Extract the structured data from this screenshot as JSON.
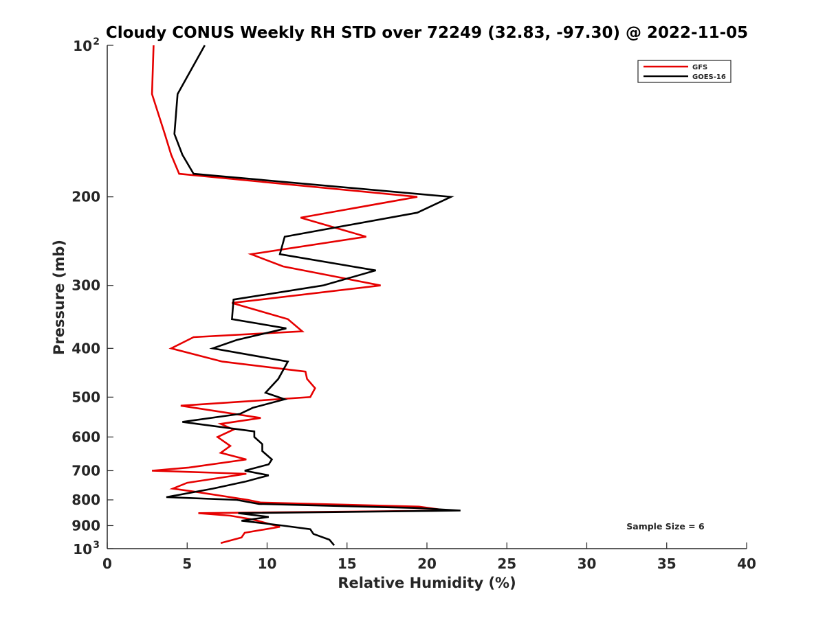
{
  "chart_data": {
    "type": "line",
    "title": "Cloudy CONUS Weekly RH STD over 72249 (32.83, -97.30) @ 2022-11-05",
    "xlabel": "Relative Humidity (%)",
    "ylabel": "Pressure (mb)",
    "xlim": [
      0,
      40
    ],
    "ylim": [
      100,
      1000
    ],
    "y_scale": "log",
    "y_reversed": true,
    "grid": false,
    "legend_position": "top-right",
    "x_ticks": [
      "0",
      "5",
      "10",
      "15",
      "20",
      "25",
      "30",
      "35",
      "40"
    ],
    "y_ticks": [
      {
        "value": 100,
        "base": "10",
        "exp": "2"
      },
      {
        "value": 200,
        "label": "200"
      },
      {
        "value": 300,
        "label": "300"
      },
      {
        "value": 400,
        "label": "400"
      },
      {
        "value": 500,
        "label": "500"
      },
      {
        "value": 600,
        "label": "600"
      },
      {
        "value": 700,
        "label": "700"
      },
      {
        "value": 800,
        "label": "800"
      },
      {
        "value": 900,
        "label": "900"
      },
      {
        "value": 1000,
        "base": "10",
        "exp": "3"
      }
    ],
    "annotation": "Sample Size = 6",
    "series": [
      {
        "name": "GFS",
        "color": "#e60000",
        "points": [
          [
            2.9,
            100
          ],
          [
            2.8,
            125
          ],
          [
            3.6,
            150
          ],
          [
            4.0,
            165
          ],
          [
            4.5,
            180
          ],
          [
            19.4,
            200
          ],
          [
            12.1,
            220
          ],
          [
            16.2,
            240
          ],
          [
            9.0,
            260
          ],
          [
            11.0,
            275
          ],
          [
            17.1,
            300
          ],
          [
            7.8,
            325
          ],
          [
            11.3,
            350
          ],
          [
            12.2,
            370
          ],
          [
            5.4,
            380
          ],
          [
            4.0,
            400
          ],
          [
            7.2,
            425
          ],
          [
            12.4,
            445
          ],
          [
            12.5,
            460
          ],
          [
            13.0,
            480
          ],
          [
            12.7,
            500
          ],
          [
            4.6,
            520
          ],
          [
            9.6,
            550
          ],
          [
            7.1,
            565
          ],
          [
            7.9,
            580
          ],
          [
            6.9,
            600
          ],
          [
            7.7,
            625
          ],
          [
            7.1,
            645
          ],
          [
            8.7,
            665
          ],
          [
            5.1,
            690
          ],
          [
            2.8,
            700
          ],
          [
            8.7,
            710
          ],
          [
            5.0,
            740
          ],
          [
            4.1,
            760
          ],
          [
            5.4,
            770
          ],
          [
            8.8,
            800
          ],
          [
            9.6,
            810
          ],
          [
            19.5,
            825
          ],
          [
            21.3,
            840
          ],
          [
            5.7,
            850
          ],
          [
            7.7,
            860
          ],
          [
            9.1,
            875
          ],
          [
            10.8,
            905
          ],
          [
            8.6,
            930
          ],
          [
            8.4,
            950
          ],
          [
            7.1,
            975
          ]
        ]
      },
      {
        "name": "GOES-16",
        "color": "#000000",
        "points": [
          [
            6.1,
            100
          ],
          [
            4.4,
            125
          ],
          [
            4.2,
            150
          ],
          [
            4.7,
            165
          ],
          [
            5.4,
            180
          ],
          [
            21.5,
            200
          ],
          [
            19.4,
            215
          ],
          [
            11.1,
            240
          ],
          [
            10.8,
            260
          ],
          [
            16.8,
            280
          ],
          [
            13.5,
            300
          ],
          [
            7.9,
            320
          ],
          [
            7.8,
            350
          ],
          [
            11.2,
            365
          ],
          [
            8.1,
            385
          ],
          [
            6.6,
            400
          ],
          [
            11.3,
            425
          ],
          [
            10.7,
            460
          ],
          [
            9.9,
            490
          ],
          [
            11.1,
            505
          ],
          [
            9.1,
            525
          ],
          [
            8.3,
            540
          ],
          [
            4.7,
            560
          ],
          [
            9.2,
            585
          ],
          [
            9.2,
            600
          ],
          [
            9.7,
            620
          ],
          [
            9.7,
            640
          ],
          [
            10.3,
            665
          ],
          [
            10.1,
            680
          ],
          [
            8.6,
            700
          ],
          [
            10.1,
            715
          ],
          [
            8.7,
            735
          ],
          [
            6.6,
            760
          ],
          [
            3.7,
            790
          ],
          [
            8.1,
            800
          ],
          [
            9.5,
            815
          ],
          [
            19.2,
            830
          ],
          [
            22.1,
            840
          ],
          [
            8.2,
            850
          ],
          [
            10.1,
            865
          ],
          [
            8.4,
            880
          ],
          [
            11.0,
            900
          ],
          [
            12.7,
            915
          ],
          [
            12.9,
            935
          ],
          [
            13.9,
            960
          ],
          [
            14.2,
            985
          ]
        ]
      }
    ]
  }
}
